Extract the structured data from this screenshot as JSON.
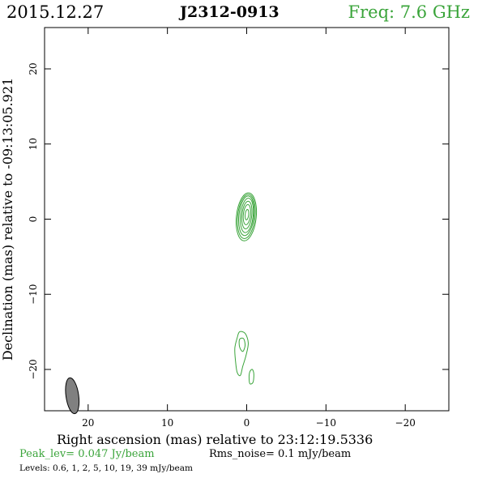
{
  "header": {
    "date": "2015.12.27",
    "source": "J2312-0913",
    "freq": "Freq: 7.6 GHz"
  },
  "footer": {
    "peak": "Peak_lev=  0.047 Jy/beam",
    "rms": "Rms_noise=  0.1 mJy/beam",
    "levels": "Levels: 0.6,   1,   2,   5,   10,   19,   39 mJy/beam"
  },
  "colors": {
    "contour": "#3aa43a",
    "beam": "#808080",
    "freq_text": "#3aa43a"
  },
  "chart_data": {
    "type": "contour",
    "xlabel": "Right ascension (mas) relative to 23:12:19.5336",
    "ylabel": "Declination (mas) relative to -09:13:05.921",
    "xlim": [
      25.5,
      -25.5
    ],
    "ylim": [
      -25.5,
      25.5
    ],
    "xticks": [
      20,
      10,
      0,
      -10,
      -20
    ],
    "yticks": [
      20,
      10,
      0,
      -10,
      -20
    ],
    "xtick_labels": [
      "20",
      "10",
      "0",
      "−10",
      "−20"
    ],
    "ytick_labels": [
      "20",
      "10",
      "0",
      "−10",
      "−20"
    ],
    "levels_mJy": [
      0.6,
      1,
      2,
      5,
      10,
      19,
      39
    ],
    "peak_Jy_per_beam": 0.047,
    "rms_mJy_per_beam": 0.1,
    "core": {
      "center": [
        0.0,
        0.3
      ],
      "contours": [
        {
          "rx": 1.25,
          "ry": 3.2,
          "cx": 0.05,
          "cy": 0.0
        },
        {
          "rx": 1.1,
          "ry": 2.95,
          "cx": 0.05,
          "cy": 0.05
        },
        {
          "rx": 0.95,
          "ry": 2.65,
          "cx": 0.05,
          "cy": 0.15
        },
        {
          "rx": 0.8,
          "ry": 2.3,
          "cx": 0.0,
          "cy": 0.2
        },
        {
          "rx": 0.62,
          "ry": 1.85,
          "cx": 0.0,
          "cy": 0.25
        },
        {
          "rx": 0.45,
          "ry": 1.35,
          "cx": 0.0,
          "cy": 0.3
        },
        {
          "rx": 0.22,
          "ry": 0.7,
          "cx": 0.0,
          "cy": 0.3
        }
      ]
    },
    "jet_components": [
      {
        "name": "",
        "points": [
          [
            1.2,
            -15.8
          ],
          [
            0.9,
            -15.0
          ],
          [
            0.2,
            -15.2
          ],
          [
            -0.2,
            -16.5
          ],
          [
            0.1,
            -18.2
          ],
          [
            0.5,
            -19.6
          ],
          [
            0.8,
            -20.8
          ],
          [
            1.2,
            -20.4
          ],
          [
            1.4,
            -19.0
          ],
          [
            1.5,
            -17.2
          ]
        ]
      },
      {
        "name": "",
        "points": [
          [
            0.9,
            -16.0
          ],
          [
            0.4,
            -15.9
          ],
          [
            0.2,
            -16.8
          ],
          [
            0.5,
            -17.6
          ],
          [
            0.9,
            -17.0
          ]
        ]
      },
      {
        "name": "",
        "points": [
          [
            -0.4,
            -20.3
          ],
          [
            -0.7,
            -20.0
          ],
          [
            -0.9,
            -20.6
          ],
          [
            -0.8,
            -21.7
          ],
          [
            -0.4,
            -21.9
          ],
          [
            -0.3,
            -21.0
          ]
        ]
      }
    ],
    "beam": {
      "center": [
        22.0,
        -23.5
      ],
      "major_mas": 2.6,
      "minor_mas": 1.0,
      "pa_deg": -8
    }
  }
}
